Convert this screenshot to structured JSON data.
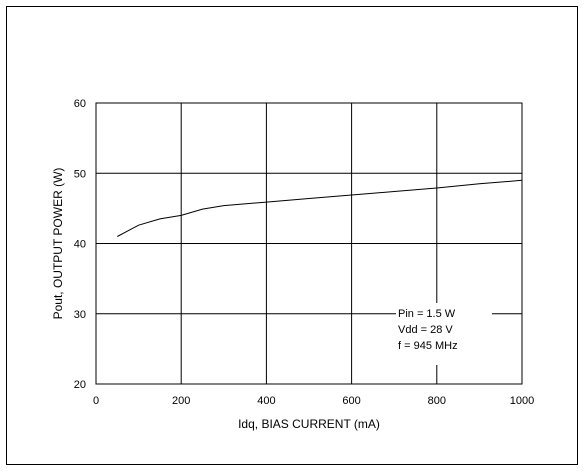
{
  "chart_data": {
    "type": "line",
    "title": "",
    "xlabel": "Idq, BIAS CURRENT  (mA)",
    "ylabel": "Pout, OUTPUT POWER  (W)",
    "xlim": [
      0,
      1000
    ],
    "ylim": [
      20,
      60
    ],
    "xticks": [
      0,
      200,
      400,
      600,
      800,
      1000
    ],
    "yticks": [
      20,
      30,
      40,
      50,
      60
    ],
    "grid": true,
    "series": [
      {
        "x": [
          50,
          100,
          150,
          200,
          250,
          300,
          400,
          500,
          600,
          700,
          800,
          900,
          1000
        ],
        "y": [
          41.0,
          42.6,
          43.5,
          44.0,
          44.9,
          45.4,
          45.9,
          46.4,
          46.9,
          47.4,
          47.9,
          48.5,
          49.0
        ]
      }
    ],
    "annotations": [
      "Pin = 1.5 W",
      "Vdd = 28 V",
      "f = 945 MHz"
    ]
  }
}
